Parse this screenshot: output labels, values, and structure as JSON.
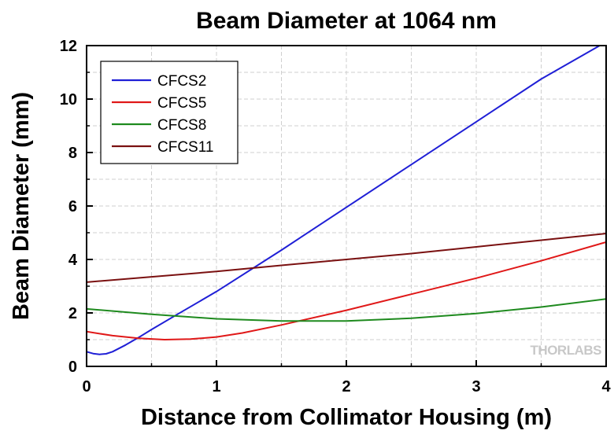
{
  "chart_data": {
    "type": "line",
    "title": "Beam Diameter at 1064 nm",
    "xlabel": "Distance from Collimator Housing (m)",
    "ylabel": "Beam Diameter (mm)",
    "xlim": [
      0,
      4
    ],
    "ylim": [
      0,
      12
    ],
    "xticks": [
      "0",
      "1",
      "2",
      "3",
      "4"
    ],
    "yticks": [
      "0",
      "2",
      "4",
      "6",
      "8",
      "10",
      "12"
    ],
    "grid": true,
    "legend_position": "top-left",
    "series": [
      {
        "name": "CFCS2",
        "color": "#1f1fd6",
        "x": [
          0,
          0.05,
          0.1,
          0.15,
          0.2,
          0.3,
          0.4,
          0.5,
          0.7,
          1.0,
          1.5,
          2.0,
          2.5,
          3.0,
          3.5,
          3.95
        ],
        "y": [
          0.55,
          0.48,
          0.45,
          0.47,
          0.55,
          0.8,
          1.08,
          1.38,
          1.95,
          2.8,
          4.35,
          5.95,
          7.55,
          9.15,
          10.75,
          12.0
        ]
      },
      {
        "name": "CFCS5",
        "color": "#e01818",
        "x": [
          0,
          0.2,
          0.4,
          0.6,
          0.8,
          1.0,
          1.2,
          1.5,
          2.0,
          2.5,
          3.0,
          3.5,
          4.0
        ],
        "y": [
          1.3,
          1.15,
          1.05,
          1.0,
          1.02,
          1.1,
          1.25,
          1.55,
          2.1,
          2.7,
          3.3,
          3.95,
          4.65
        ]
      },
      {
        "name": "CFCS8",
        "color": "#1e8a1e",
        "x": [
          0,
          0.5,
          1.0,
          1.5,
          2.0,
          2.5,
          3.0,
          3.5,
          4.0
        ],
        "y": [
          2.15,
          1.95,
          1.78,
          1.7,
          1.7,
          1.8,
          1.98,
          2.22,
          2.52
        ]
      },
      {
        "name": "CFCS11",
        "color": "#7a1010",
        "x": [
          0,
          0.5,
          1.0,
          1.5,
          2.0,
          2.5,
          3.0,
          3.5,
          4.0
        ],
        "y": [
          3.15,
          3.35,
          3.55,
          3.78,
          4.0,
          4.22,
          4.47,
          4.72,
          4.97
        ]
      }
    ]
  },
  "watermark": "THORLABS"
}
